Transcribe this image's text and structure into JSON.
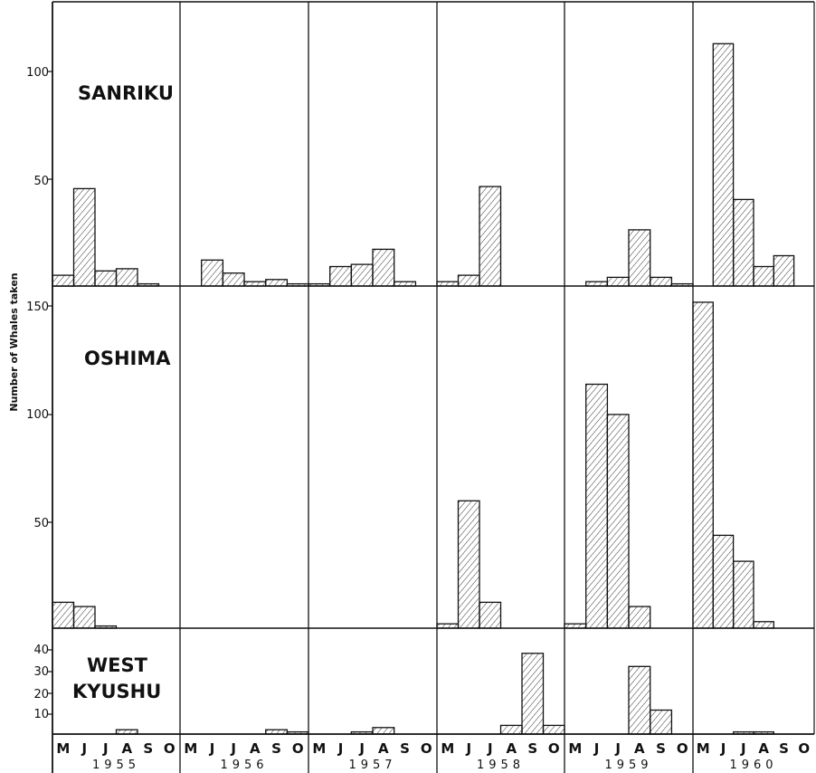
{
  "chart_data": {
    "type": "bar",
    "ylabel": "Number of Whales taken",
    "years": [
      "1955",
      "1956",
      "1957",
      "1958",
      "1959",
      "1960"
    ],
    "month_labels": [
      "M",
      "J",
      "J",
      "A",
      "S",
      "O"
    ],
    "panels": [
      {
        "region": "SANRIKU",
        "ylim": [
          0,
          126
        ],
        "yticks": [
          "50",
          "100"
        ],
        "series": [
          {
            "year": "1955",
            "values": [
              5,
              45,
              7,
              8,
              1,
              0
            ]
          },
          {
            "year": "1956",
            "values": [
              0,
              12,
              6,
              2,
              3,
              1
            ]
          },
          {
            "year": "1957",
            "values": [
              1,
              9,
              10,
              17,
              2,
              0
            ]
          },
          {
            "year": "1958",
            "values": [
              2,
              5,
              46,
              0,
              0,
              0
            ]
          },
          {
            "year": "1959",
            "values": [
              0,
              2,
              4,
              26,
              4,
              1
            ]
          },
          {
            "year": "1960",
            "values": [
              0,
              112,
              40,
              9,
              14,
              0
            ]
          }
        ]
      },
      {
        "region": "OSHIMA",
        "ylim": [
          0,
          155
        ],
        "yticks": [
          "50",
          "100",
          "150"
        ],
        "series": [
          {
            "year": "1955",
            "values": [
              12,
              10,
              1,
              0,
              0,
              0
            ]
          },
          {
            "year": "1956",
            "values": [
              0,
              0,
              0,
              0,
              0,
              0
            ]
          },
          {
            "year": "1957",
            "values": [
              0,
              0,
              0,
              0,
              0,
              0
            ]
          },
          {
            "year": "1958",
            "values": [
              2,
              59,
              12,
              0,
              0,
              0
            ]
          },
          {
            "year": "1959",
            "values": [
              2,
              113,
              99,
              10,
              0,
              0
            ]
          },
          {
            "year": "1960",
            "values": [
              151,
              43,
              31,
              3,
              0,
              0
            ]
          }
        ]
      },
      {
        "region": "WEST KYUSHU",
        "region_lines": [
          "WEST",
          "KYUSHU"
        ],
        "ylim": [
          0,
          44
        ],
        "yticks": [
          "10",
          "20",
          "30",
          "40"
        ],
        "series": [
          {
            "year": "1955",
            "values": [
              0,
              0,
              0,
              2,
              0,
              0
            ]
          },
          {
            "year": "1956",
            "values": [
              0,
              0,
              0,
              0,
              2,
              1
            ]
          },
          {
            "year": "1957",
            "values": [
              0,
              0,
              1,
              3,
              0,
              0
            ]
          },
          {
            "year": "1958",
            "values": [
              0,
              0,
              0,
              4,
              37,
              4
            ]
          },
          {
            "year": "1959",
            "values": [
              0,
              0,
              0,
              31,
              11,
              0
            ]
          },
          {
            "year": "1960",
            "values": [
              0,
              0,
              1,
              1,
              0,
              0
            ]
          }
        ]
      }
    ]
  }
}
